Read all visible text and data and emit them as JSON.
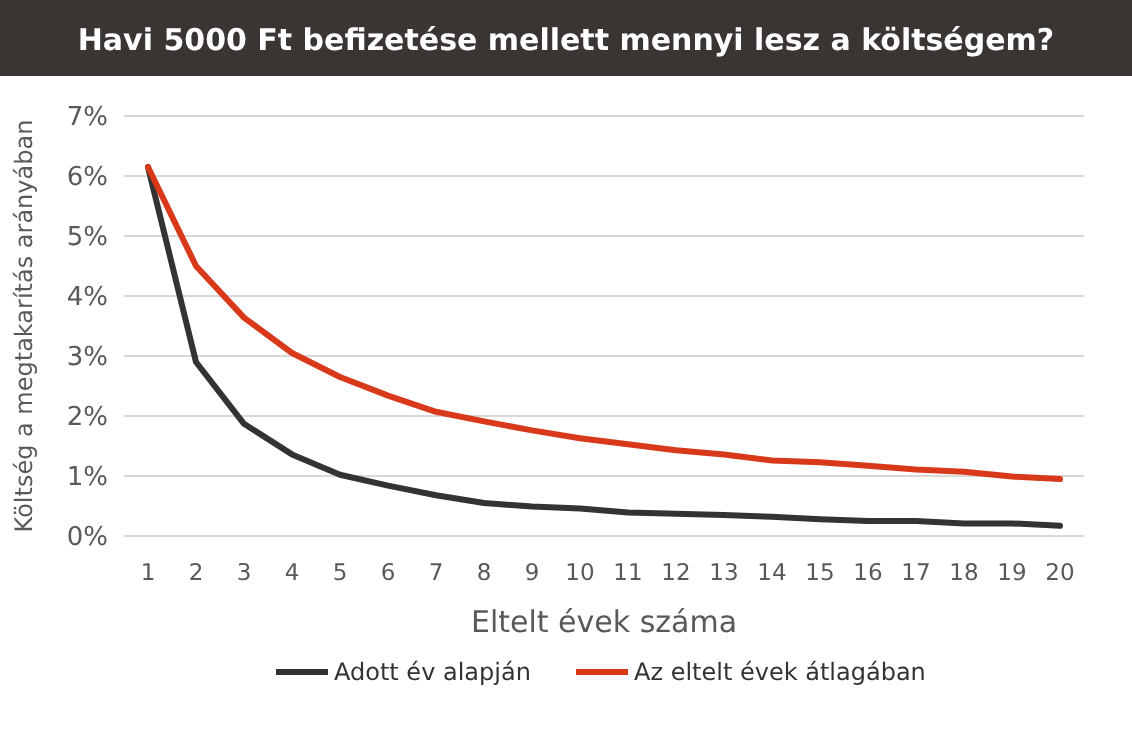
{
  "chart_data": {
    "type": "line",
    "title": "Havi 5000 Ft befizetése mellett mennyi lesz a költségem?",
    "xlabel": "Eltelt évek száma",
    "ylabel": "Költség a megtakarítás arányában",
    "x": [
      1,
      2,
      3,
      4,
      5,
      6,
      7,
      8,
      9,
      10,
      11,
      12,
      13,
      14,
      15,
      16,
      17,
      18,
      19,
      20
    ],
    "xlim": [
      0.5,
      20.5
    ],
    "xticks": [
      1,
      2,
      3,
      4,
      5,
      6,
      7,
      8,
      9,
      10,
      11,
      12,
      13,
      14,
      15,
      16,
      17,
      18,
      19,
      20
    ],
    "series": [
      {
        "name": "Adott év alapján",
        "color": "#333333",
        "values": [
          6.15,
          2.9,
          1.87,
          1.36,
          1.02,
          0.84,
          0.68,
          0.55,
          0.49,
          0.46,
          0.39,
          0.37,
          0.35,
          0.32,
          0.28,
          0.25,
          0.25,
          0.21,
          0.21,
          0.17
        ]
      },
      {
        "name": "Az eltelt évek átlagában",
        "color": "#d9391b",
        "values": [
          6.15,
          4.5,
          3.64,
          3.05,
          2.65,
          2.34,
          2.07,
          1.91,
          1.76,
          1.63,
          1.53,
          1.43,
          1.36,
          1.26,
          1.23,
          1.17,
          1.11,
          1.07,
          0.99,
          0.95
        ]
      }
    ],
    "ylim": [
      0,
      7
    ],
    "yticks": [
      {
        "value": 0,
        "label": "0%"
      },
      {
        "value": 1,
        "label": "1%"
      },
      {
        "value": 2,
        "label": "2%"
      },
      {
        "value": 3,
        "label": "3%"
      },
      {
        "value": 4,
        "label": "4%"
      },
      {
        "value": 5,
        "label": "5%"
      },
      {
        "value": 6,
        "label": "6%"
      },
      {
        "value": 7,
        "label": "7%"
      }
    ],
    "grid": "y",
    "legend": "bottom",
    "marker": "none",
    "line_style": "solid"
  }
}
